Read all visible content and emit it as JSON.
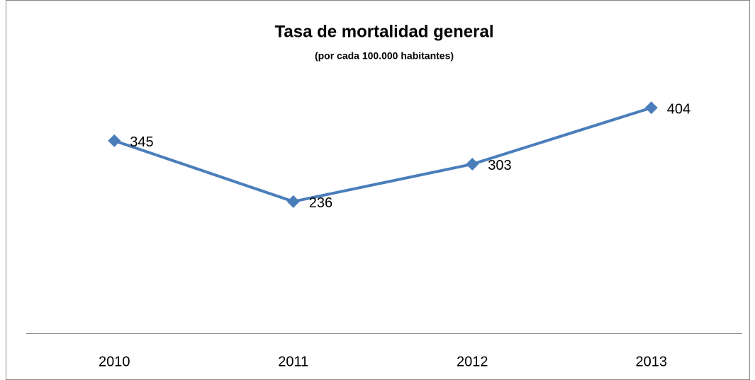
{
  "chart_data": {
    "type": "line",
    "title": "Tasa de mortalidad general",
    "subtitle": "(por cada 100.000 habitantes)",
    "categories": [
      "2010",
      "2011",
      "2012",
      "2013"
    ],
    "values": [
      345,
      236,
      303,
      404
    ],
    "color": "#4a7ebb",
    "ylim": [
      0,
      450
    ]
  }
}
